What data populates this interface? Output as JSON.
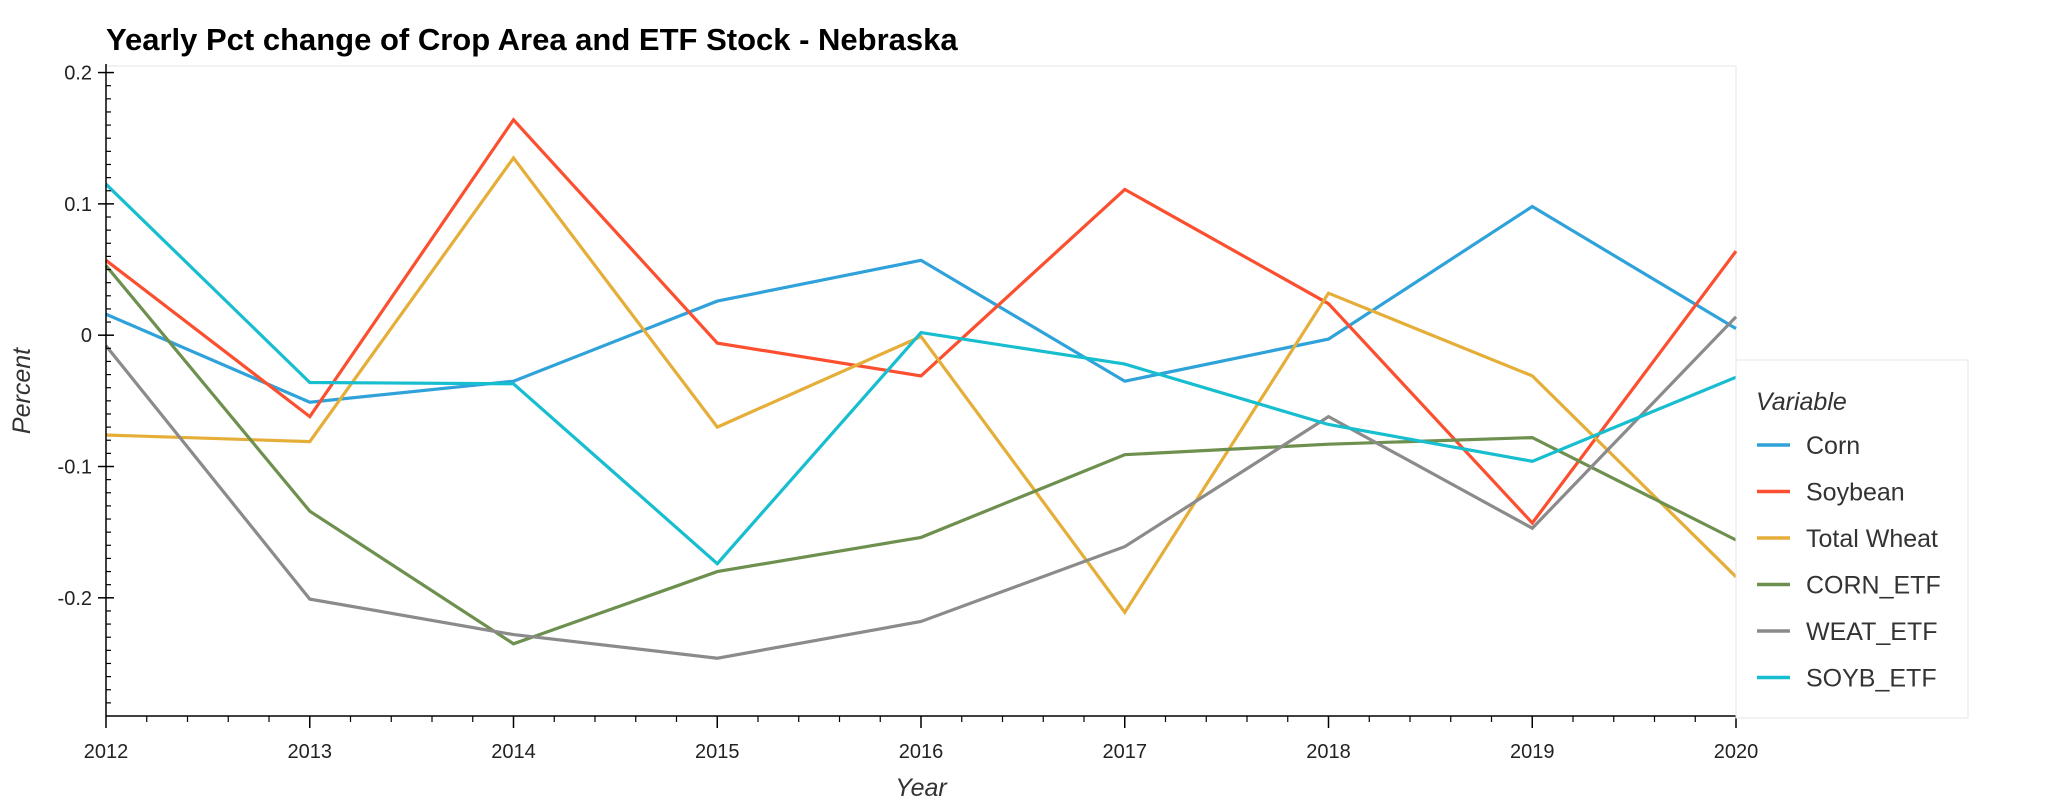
{
  "chart_data": {
    "type": "line",
    "title": "Yearly Pct change of Crop Area and ETF Stock - Nebraska",
    "xlabel": "Year",
    "ylabel": "Percent",
    "x": [
      2012,
      2013,
      2014,
      2015,
      2016,
      2017,
      2018,
      2019,
      2020
    ],
    "xlim": [
      2012,
      2020
    ],
    "ylim": [
      -0.29,
      0.205
    ],
    "x_ticks": [
      "2012",
      "2013",
      "2014",
      "2015",
      "2016",
      "2017",
      "2018",
      "2019",
      "2020"
    ],
    "y_ticks": [
      {
        "value": 0.2,
        "label": "0.2"
      },
      {
        "value": 0.1,
        "label": "0.1"
      },
      {
        "value": 0,
        "label": "0"
      },
      {
        "value": -0.1,
        "label": "-0.1"
      },
      {
        "value": -0.2,
        "label": "-0.2"
      }
    ],
    "grid": false,
    "legend": {
      "title": "Variable",
      "placement": "right"
    },
    "series": [
      {
        "name": "Corn",
        "color": "#30a2da",
        "values": [
          0.016,
          -0.051,
          -0.035,
          0.026,
          0.057,
          -0.035,
          -0.003,
          0.098,
          0.005
        ]
      },
      {
        "name": "Soybean",
        "color": "#fc4f30",
        "values": [
          0.057,
          -0.062,
          0.164,
          -0.006,
          -0.031,
          0.111,
          0.024,
          -0.143,
          0.064
        ]
      },
      {
        "name": "Total Wheat",
        "color": "#e5ae38",
        "values": [
          -0.076,
          -0.081,
          0.135,
          -0.07,
          -0.001,
          -0.211,
          0.032,
          -0.031,
          -0.184
        ]
      },
      {
        "name": "CORN_ETF",
        "color": "#6d904f",
        "values": [
          0.053,
          -0.134,
          -0.235,
          -0.18,
          -0.154,
          -0.091,
          -0.083,
          -0.078,
          -0.156
        ]
      },
      {
        "name": "WEAT_ETF",
        "color": "#8b8b8b",
        "values": [
          -0.008,
          -0.201,
          -0.228,
          -0.246,
          -0.218,
          -0.161,
          -0.062,
          -0.147,
          0.014
        ]
      },
      {
        "name": "SOYB_ETF",
        "color": "#17becf",
        "values": [
          0.115,
          -0.036,
          -0.037,
          -0.174,
          0.002,
          -0.022,
          -0.068,
          -0.096,
          -0.032
        ]
      }
    ]
  }
}
